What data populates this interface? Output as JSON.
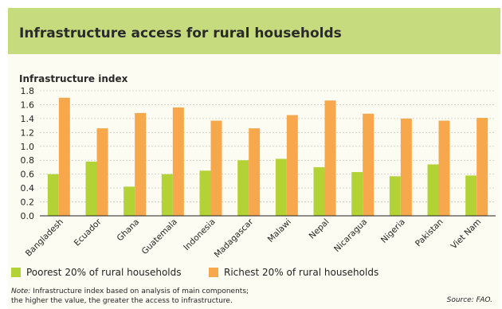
{
  "header": {
    "title": "Infrastructure access for rural households"
  },
  "colors": {
    "banner": "#c6da7e",
    "poorest": "#b2d235",
    "richest": "#f7a84d"
  },
  "chart_data": {
    "type": "bar",
    "title": "Infrastructure access for rural households",
    "ylabel": "Infrastructure index",
    "xlabel": "",
    "ylim": [
      0,
      1.8
    ],
    "yticks": [
      "0.0",
      "0.2",
      "0.4",
      "0.6",
      "0.8",
      "1.0",
      "1.2",
      "1.4",
      "1.6",
      "1.8"
    ],
    "grid": true,
    "legend_position": "bottom",
    "categories": [
      "Bangladesh",
      "Ecuador",
      "Ghana",
      "Guatemala",
      "Indonesia",
      "Madagascar",
      "Malawi",
      "Nepal",
      "Nicaragua",
      "Nigeria",
      "Pakistan",
      "Viet Nam"
    ],
    "series": [
      {
        "name": "Poorest 20% of rural households",
        "color": "#b2d235",
        "values": [
          0.6,
          0.78,
          0.42,
          0.6,
          0.65,
          0.8,
          0.82,
          0.7,
          0.63,
          0.57,
          0.74,
          0.58
        ]
      },
      {
        "name": "Richest 20% of rural households",
        "color": "#f7a84d",
        "values": [
          1.7,
          1.26,
          1.48,
          1.56,
          1.37,
          1.26,
          1.45,
          1.66,
          1.47,
          1.4,
          1.37,
          1.41
        ]
      }
    ]
  },
  "footer": {
    "note_prefix": "Note:",
    "note_line1": " Infrastructure index based on analysis of main components;",
    "note_line2": "the higher the value, the greater the access to infrastructure.",
    "source": "Source: FAO."
  }
}
